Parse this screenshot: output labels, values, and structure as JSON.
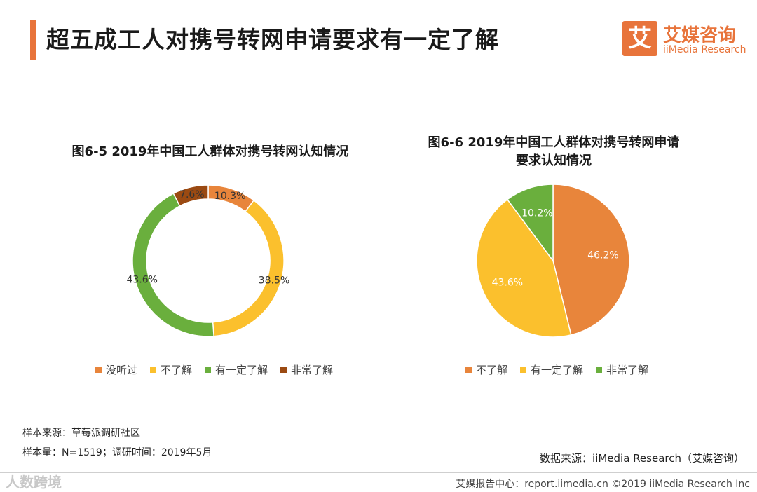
{
  "header": {
    "title": "超五成工人对携号转网申请要求有一定了解",
    "brand_logo_char": "艾",
    "brand_cn": "艾媒咨询",
    "brand_en": "iiMedia Research",
    "accent_color": "#E8743B"
  },
  "chart_data": [
    {
      "type": "donut",
      "title": "图6-5 2019年中国工人群体对携号转网认知情况",
      "categories": [
        "没听过",
        "不了解",
        "有一定了解",
        "非常了解"
      ],
      "values": [
        10.3,
        38.5,
        43.6,
        7.6
      ],
      "labels": [
        "10.3%",
        "38.5%",
        "43.6%",
        "7.6%"
      ],
      "colors": [
        "#E8853B",
        "#FBC02D",
        "#6AAF3D",
        "#9B4A12"
      ]
    },
    {
      "type": "pie",
      "title_lines": [
        "图6-6 2019年中国工人群体对携号转网申请",
        "要求认知情况"
      ],
      "categories": [
        "不了解",
        "有一定了解",
        "非常了解"
      ],
      "values": [
        46.2,
        43.6,
        10.2
      ],
      "labels": [
        "46.2%",
        "43.6%",
        "10.2%"
      ],
      "colors": [
        "#E8853B",
        "#FBC02D",
        "#6AAF3D"
      ]
    }
  ],
  "footer": {
    "sample_source": "样本来源：草莓派调研社区",
    "sample_size": "样本量：N=1519；调研时间：2019年5月",
    "data_source": "数据来源：iiMedia Research（艾媒咨询）",
    "credit": "艾媒报告中心：report.iimedia.cn  ©2019  iiMedia Research Inc",
    "watermark": "人数跨境"
  }
}
